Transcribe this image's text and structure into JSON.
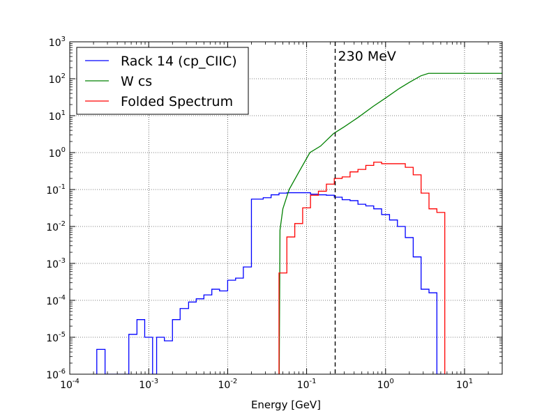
{
  "chart_data": {
    "type": "line",
    "title": "",
    "xlabel": "Energy [GeV]",
    "ylabel": "",
    "xscale": "log",
    "yscale": "log",
    "xlim": [
      0.0001,
      30
    ],
    "ylim": [
      1e-06,
      1000
    ],
    "grid": true,
    "legend_position": "top-left",
    "x_ticks": [
      {
        "base": "10",
        "exp": "-4",
        "value": 0.0001
      },
      {
        "base": "10",
        "exp": "-3",
        "value": 0.001
      },
      {
        "base": "10",
        "exp": "-2",
        "value": 0.01
      },
      {
        "base": "10",
        "exp": "-1",
        "value": 0.1
      },
      {
        "base": "10",
        "exp": "0",
        "value": 1
      },
      {
        "base": "10",
        "exp": "1",
        "value": 10
      }
    ],
    "y_ticks": [
      {
        "base": "10",
        "exp": "-6",
        "value": 1e-06
      },
      {
        "base": "10",
        "exp": "-5",
        "value": 1e-05
      },
      {
        "base": "10",
        "exp": "-4",
        "value": 0.0001
      },
      {
        "base": "10",
        "exp": "-3",
        "value": 0.001
      },
      {
        "base": "10",
        "exp": "-2",
        "value": 0.01
      },
      {
        "base": "10",
        "exp": "-1",
        "value": 0.1
      },
      {
        "base": "10",
        "exp": "0",
        "value": 1
      },
      {
        "base": "10",
        "exp": "1",
        "value": 10
      },
      {
        "base": "10",
        "exp": "2",
        "value": 100
      },
      {
        "base": "10",
        "exp": "3",
        "value": 1000
      }
    ],
    "annotations": [
      {
        "text": "230 MeV",
        "x": 0.23,
        "style": "dashed-vertical"
      }
    ],
    "series": [
      {
        "name": "Rack 14 (cp_CIIC)",
        "color": "#0000ff",
        "style": "step",
        "edges": [
          0.00022,
          0.00028,
          0.00056,
          0.00071,
          0.00089,
          0.00112,
          0.00126,
          0.00158,
          0.002,
          0.0025,
          0.0032,
          0.004,
          0.005,
          0.0063,
          0.0079,
          0.01,
          0.0126,
          0.0158,
          0.02,
          0.0224,
          0.0282,
          0.0355,
          0.0447,
          0.0562,
          0.0708,
          0.0891,
          0.112,
          0.141,
          0.178,
          0.224,
          0.282,
          0.355,
          0.447,
          0.562,
          0.708,
          0.891,
          1.122,
          1.413,
          1.778,
          2.239,
          2.818,
          3.548,
          4.467,
          5.623
        ],
        "values": [
          4.7e-06,
          1e-06,
          1.2e-05,
          3e-05,
          1e-05,
          1e-06,
          1e-05,
          8e-06,
          3e-05,
          6e-05,
          9e-05,
          0.00011,
          0.00014,
          0.0002,
          0.00018,
          0.00035,
          0.0004,
          0.0008,
          0.055,
          0.055,
          0.06,
          0.072,
          0.08,
          0.082,
          0.082,
          0.082,
          0.075,
          0.072,
          0.07,
          0.062,
          0.053,
          0.05,
          0.04,
          0.036,
          0.03,
          0.021,
          0.015,
          0.01,
          0.005,
          0.0015,
          0.0002,
          0.00016,
          1e-06
        ]
      },
      {
        "name": "W cs",
        "color": "#008000",
        "style": "line",
        "x": [
          0.045,
          0.046,
          0.05,
          0.06,
          0.08,
          0.11,
          0.15,
          0.22,
          0.3,
          0.45,
          0.7,
          1.0,
          1.5,
          2.0,
          2.8,
          3.5,
          5,
          10,
          30
        ],
        "y": [
          1e-06,
          0.008,
          0.03,
          0.1,
          0.3,
          1.0,
          1.5,
          3.3,
          5,
          9,
          18,
          30,
          55,
          80,
          120,
          140,
          140,
          140,
          140
        ]
      },
      {
        "name": "Folded Spectrum",
        "color": "#ff0000",
        "style": "step",
        "edges": [
          0.0447,
          0.0562,
          0.0708,
          0.0891,
          0.112,
          0.141,
          0.178,
          0.224,
          0.282,
          0.355,
          0.447,
          0.562,
          0.708,
          0.891,
          1.122,
          1.413,
          1.778,
          2.239,
          2.818,
          3.548,
          4.467,
          5.623
        ],
        "values": [
          0.00055,
          0.0052,
          0.012,
          0.032,
          0.07,
          0.09,
          0.14,
          0.2,
          0.22,
          0.3,
          0.35,
          0.45,
          0.55,
          0.5,
          0.5,
          0.5,
          0.4,
          0.25,
          0.08,
          0.03,
          0.024
        ]
      }
    ]
  }
}
